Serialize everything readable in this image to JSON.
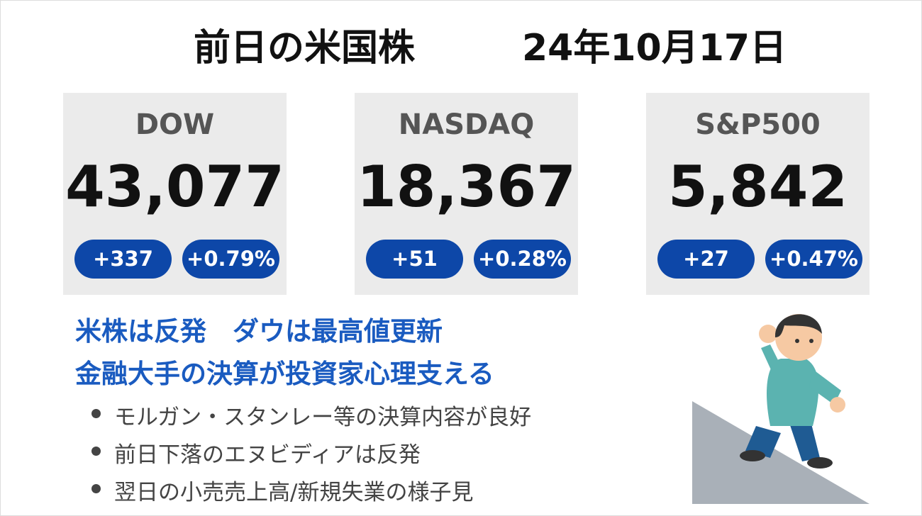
{
  "header": {
    "title": "前日の米国株",
    "date": "24年10月17日"
  },
  "indices": [
    {
      "name": "DOW",
      "value": "43,077",
      "change": "+337",
      "change_pct": "+0.79%"
    },
    {
      "name": "NASDAQ",
      "value": "18,367",
      "change": "+51",
      "change_pct": "+0.28%"
    },
    {
      "name": "S&P500",
      "value": "5,842",
      "change": "+27",
      "change_pct": "+0.47%"
    }
  ],
  "headline": [
    "米株は反発　ダウは最高値更新",
    "金融大手の決算が投資家心理支える"
  ],
  "bullets": [
    "モルガン・スタンレー等の決算内容が良好",
    "前日下落のエヌビディアは反発",
    "翌日の小売売上高/新規失業の様子見"
  ]
}
